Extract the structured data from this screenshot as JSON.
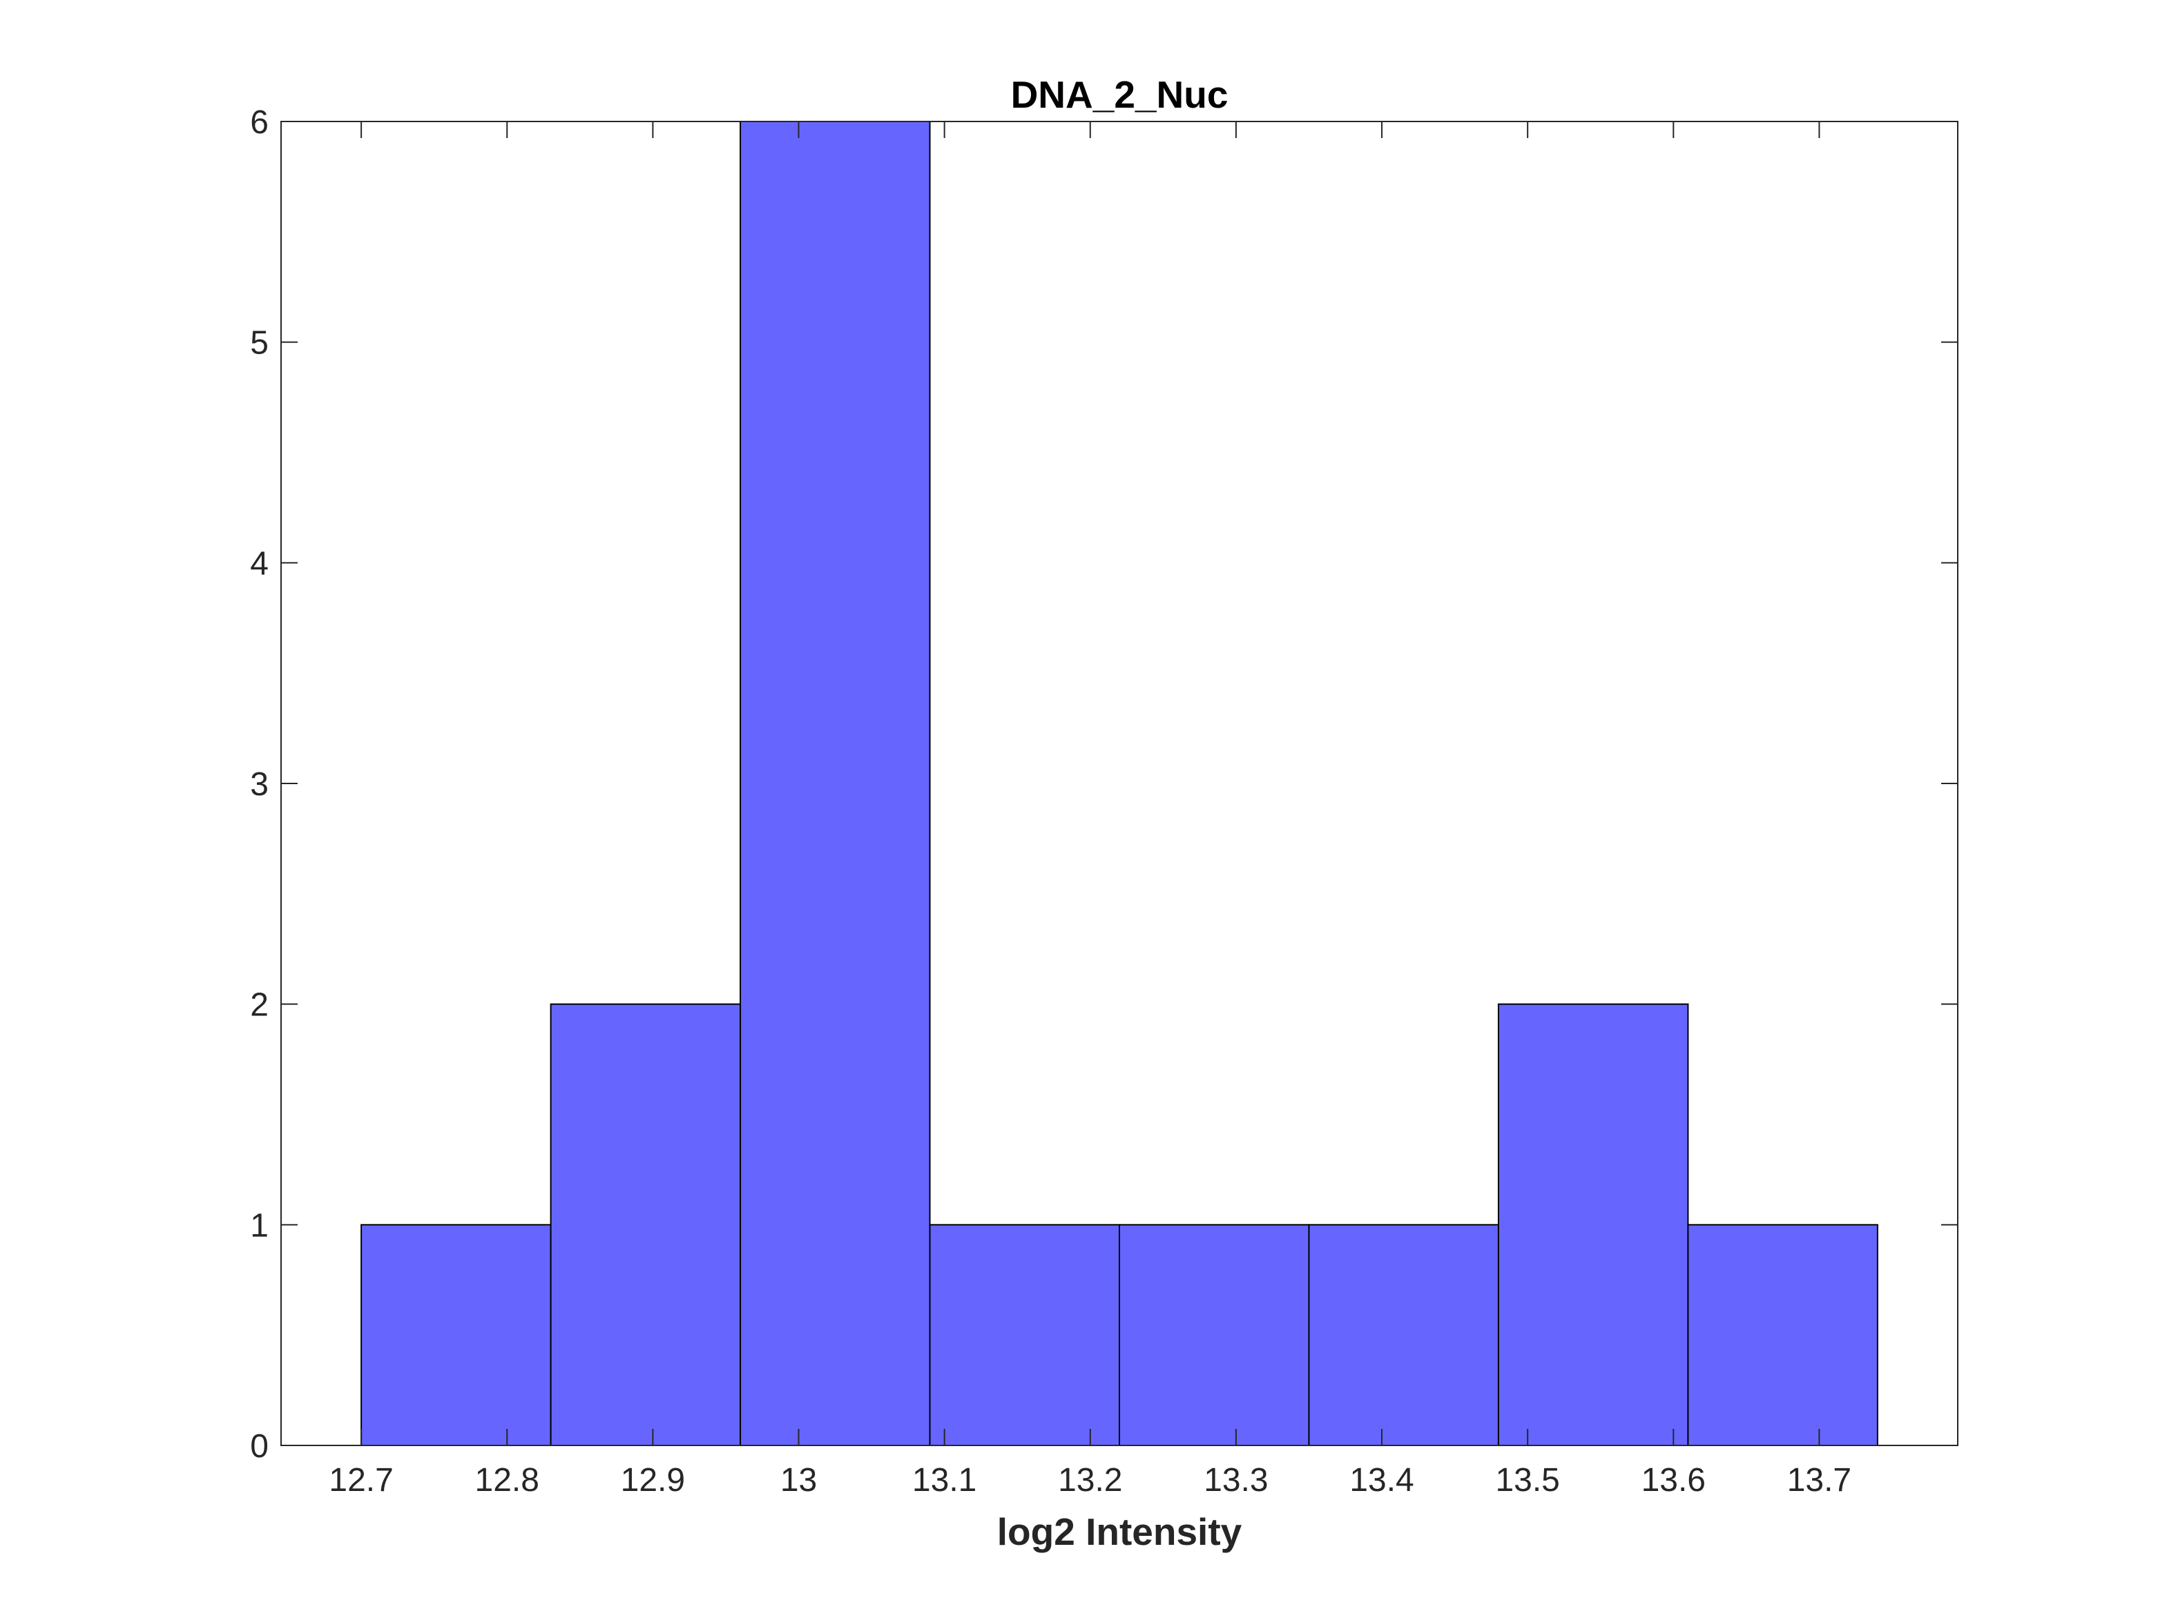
{
  "chart_data": {
    "type": "bar",
    "title": "DNA_2_Nuc",
    "xlabel": "log2 Intensity",
    "ylabel": "",
    "xlim": [
      12.645,
      13.795
    ],
    "ylim": [
      0,
      6
    ],
    "bin_edges": [
      12.7,
      12.83,
      12.96,
      13.09,
      13.22,
      13.35,
      13.48,
      13.61,
      13.74
    ],
    "values": [
      1,
      2,
      6,
      1,
      1,
      1,
      2,
      1
    ],
    "x_ticks": [
      12.7,
      12.8,
      12.9,
      13.0,
      13.1,
      13.2,
      13.3,
      13.4,
      13.5,
      13.6,
      13.7
    ],
    "x_tick_labels": [
      "12.7",
      "12.8",
      "12.9",
      "13",
      "13.1",
      "13.2",
      "13.3",
      "13.4",
      "13.5",
      "13.6",
      "13.7"
    ],
    "y_ticks": [
      0,
      1,
      2,
      3,
      4,
      5,
      6
    ],
    "y_tick_labels": [
      "0",
      "1",
      "2",
      "3",
      "4",
      "5",
      "6"
    ],
    "grid": false,
    "legend": "none",
    "colors": {
      "bar_fill": "#6666ff",
      "bar_edge": "#000000",
      "axis": "#262626"
    }
  }
}
